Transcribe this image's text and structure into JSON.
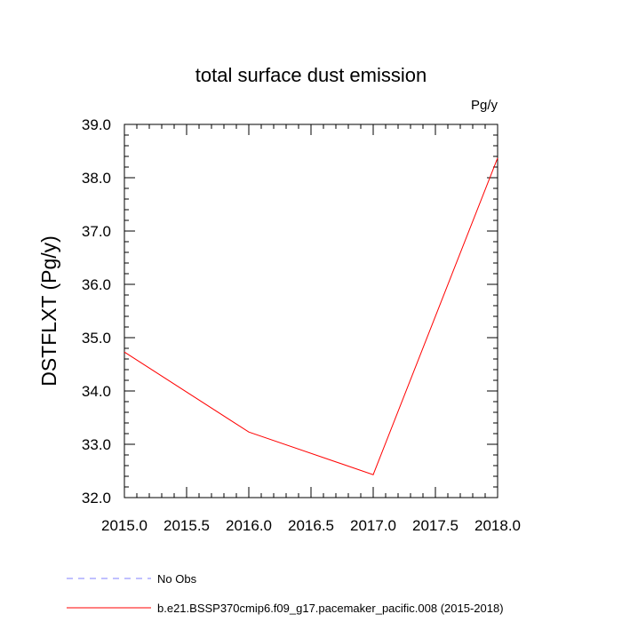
{
  "chart_data": {
    "type": "line",
    "title": "total surface dust emission",
    "units": "Pg/y",
    "ylabel": "DSTFLXT  (Pg/y)",
    "xlabel": "",
    "xlim": [
      2015.0,
      2018.0
    ],
    "ylim": [
      32.0,
      39.0
    ],
    "x_ticks": [
      "2015.0",
      "2015.5",
      "2016.0",
      "2016.5",
      "2017.0",
      "2017.5",
      "2018.0"
    ],
    "y_ticks": [
      "32.0",
      "33.0",
      "34.0",
      "35.0",
      "36.0",
      "37.0",
      "38.0",
      "39.0"
    ],
    "grid": false,
    "series": [
      {
        "name": "b.e21.BSSP370cmip6.f09_g17.pacemaker_pacific.008 (2015-2018)",
        "color": "#ff0000",
        "style": "solid",
        "x": [
          2015.0,
          2016.0,
          2017.0,
          2018.0
        ],
        "y": [
          34.73,
          33.23,
          32.43,
          38.37
        ]
      },
      {
        "name": "No Obs",
        "color": "#8080ff",
        "style": "dashed",
        "x": [],
        "y": []
      }
    ],
    "legend_position": "bottom"
  }
}
